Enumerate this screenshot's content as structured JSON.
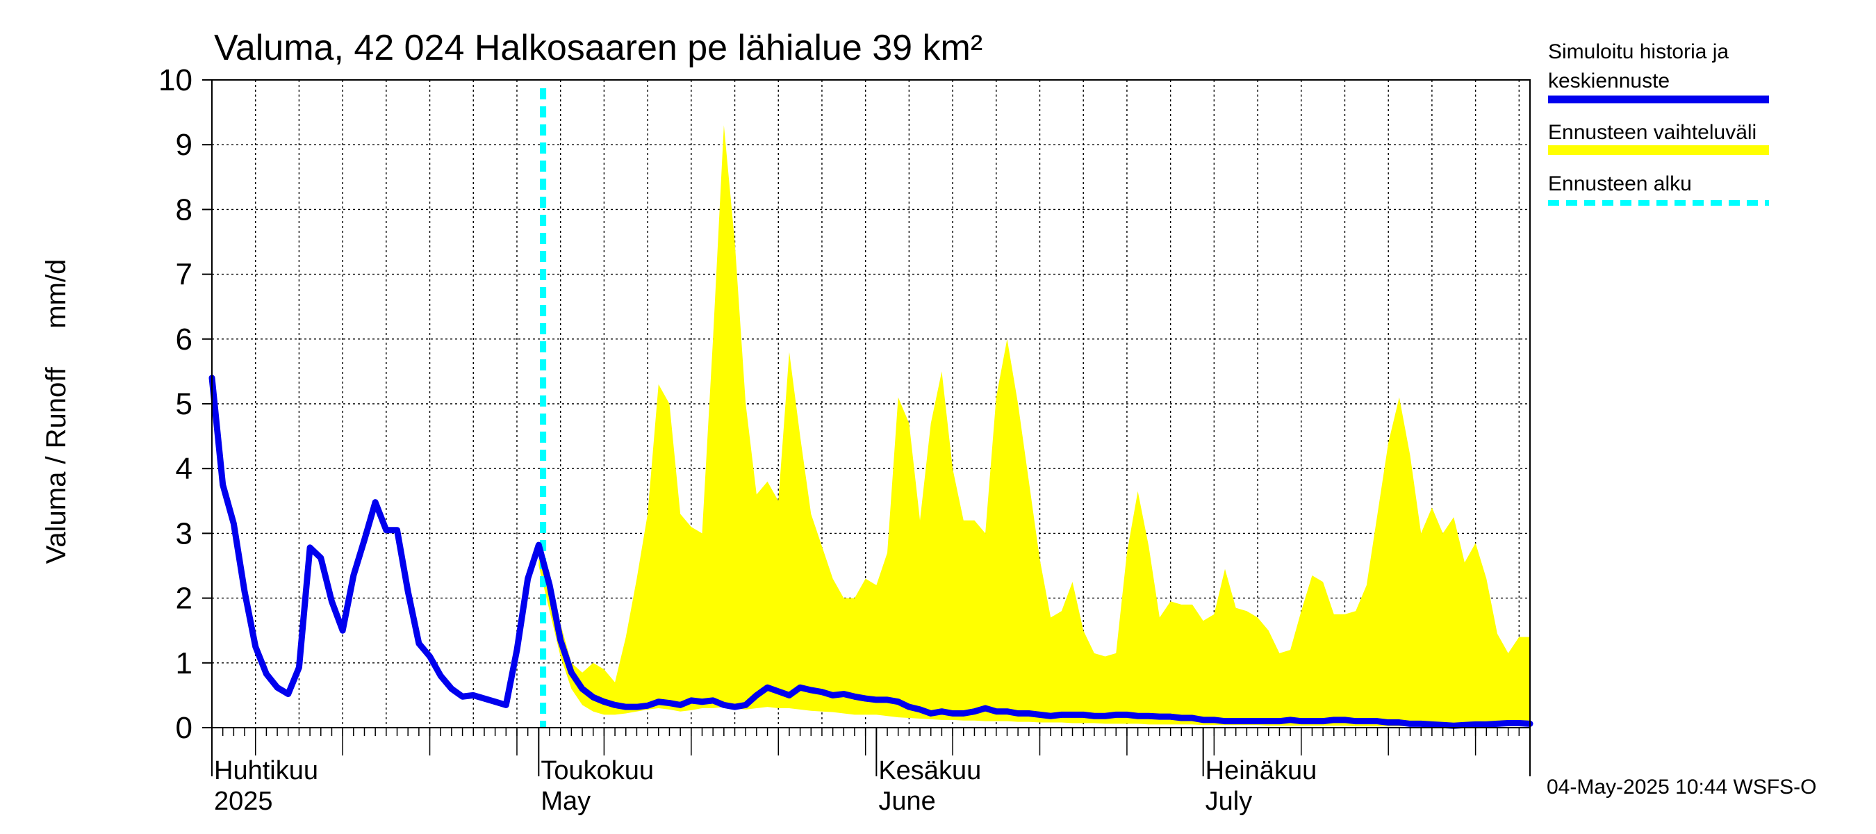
{
  "chart_data": {
    "type": "area",
    "title": "Valuma, 42 024 Halkosaaren pe lähialue 39 km²",
    "ylabel": "Valuma / Runoff     mm/d",
    "ylim": [
      0,
      10
    ],
    "yticks": [
      "0",
      "1",
      "2",
      "3",
      "4",
      "5",
      "6",
      "7",
      "8",
      "9",
      "10"
    ],
    "xlim_days": [
      0,
      121
    ],
    "month_labels": [
      {
        "day": 0,
        "line1": "Huhtikuu",
        "line2": "2025"
      },
      {
        "day": 30,
        "line1": "Toukokuu",
        "line2": "May"
      },
      {
        "day": 61,
        "line1": "Kesäkuu",
        "line2": "June"
      },
      {
        "day": 91,
        "line1": "Heinäkuu",
        "line2": "July"
      }
    ],
    "grid": true,
    "forecast_start_day": 30.4,
    "colors": {
      "history": "#0000ee",
      "range": "#ffff00",
      "forecast_start": "#00ffff",
      "grid": "#000000"
    },
    "legend": {
      "placement": "right",
      "history_line1": "Simuloitu historia ja",
      "history_line2": "keskiennuste",
      "range": "Ennusteen vaihteluväli",
      "forecast_start": "Ennusteen alku"
    },
    "series": [
      {
        "name": "Simuloitu historia ja keskiennuste",
        "x": [
          0,
          1,
          2,
          3,
          4,
          5,
          6,
          7,
          8,
          9,
          10,
          11,
          12,
          13,
          14,
          15,
          16,
          17,
          18,
          19,
          20,
          21,
          22,
          23,
          24,
          25,
          26,
          27,
          28,
          29,
          30,
          31,
          32,
          33,
          34,
          35,
          36,
          37,
          38,
          39,
          40,
          41,
          42,
          43,
          44,
          45,
          46,
          47,
          48,
          49,
          50,
          51,
          52,
          53,
          54,
          55,
          56,
          57,
          58,
          59,
          60,
          61,
          62,
          63,
          64,
          65,
          66,
          67,
          68,
          69,
          70,
          71,
          72,
          73,
          74,
          75,
          76,
          77,
          78,
          79,
          80,
          81,
          82,
          83,
          84,
          85,
          86,
          87,
          88,
          89,
          90,
          91,
          92,
          93,
          94,
          95,
          96,
          97,
          98,
          99,
          100,
          101,
          102,
          103,
          104,
          105,
          106,
          107,
          108,
          109,
          110,
          111,
          112,
          113,
          114,
          115,
          116,
          117,
          118,
          119,
          120,
          121
        ],
        "y": [
          5.4,
          3.75,
          3.15,
          2.1,
          1.25,
          0.83,
          0.62,
          0.52,
          0.93,
          2.78,
          2.62,
          1.95,
          1.5,
          2.35,
          2.9,
          3.48,
          3.05,
          3.05,
          2.1,
          1.3,
          1.1,
          0.8,
          0.6,
          0.48,
          0.5,
          0.45,
          0.4,
          0.35,
          1.2,
          2.3,
          2.82,
          2.2,
          1.35,
          0.85,
          0.6,
          0.47,
          0.4,
          0.35,
          0.32,
          0.32,
          0.34,
          0.4,
          0.38,
          0.35,
          0.42,
          0.4,
          0.42,
          0.35,
          0.32,
          0.35,
          0.5,
          0.62,
          0.56,
          0.5,
          0.62,
          0.58,
          0.55,
          0.5,
          0.52,
          0.48,
          0.45,
          0.43,
          0.43,
          0.4,
          0.32,
          0.28,
          0.22,
          0.25,
          0.22,
          0.22,
          0.25,
          0.3,
          0.25,
          0.25,
          0.22,
          0.22,
          0.2,
          0.18,
          0.2,
          0.2,
          0.2,
          0.18,
          0.18,
          0.2,
          0.2,
          0.18,
          0.18,
          0.17,
          0.17,
          0.15,
          0.15,
          0.12,
          0.12,
          0.1,
          0.1,
          0.1,
          0.1,
          0.1,
          0.1,
          0.12,
          0.1,
          0.1,
          0.1,
          0.12,
          0.12,
          0.1,
          0.1,
          0.1,
          0.08,
          0.08,
          0.06,
          0.06,
          0.05,
          0.04,
          0.03,
          0.04,
          0.05,
          0.05,
          0.06,
          0.07,
          0.07,
          0.06
        ]
      },
      {
        "name": "Ennusteen vaihteluväli",
        "x": [
          30,
          31,
          32,
          33,
          34,
          35,
          36,
          37,
          38,
          39,
          40,
          41,
          42,
          43,
          44,
          45,
          46,
          47,
          48,
          49,
          50,
          51,
          52,
          53,
          54,
          55,
          56,
          57,
          58,
          59,
          60,
          61,
          62,
          63,
          64,
          65,
          66,
          67,
          68,
          69,
          70,
          71,
          72,
          73,
          74,
          75,
          76,
          77,
          78,
          79,
          80,
          81,
          82,
          83,
          84,
          85,
          86,
          87,
          88,
          89,
          90,
          91,
          92,
          93,
          94,
          95,
          96,
          97,
          98,
          99,
          100,
          101,
          102,
          103,
          104,
          105,
          106,
          107,
          108,
          109,
          110,
          111,
          112,
          113,
          114,
          115,
          116,
          117,
          118,
          119,
          120,
          121
        ],
        "upper": [
          2.6,
          2.4,
          1.6,
          1.0,
          0.85,
          1.0,
          0.9,
          0.7,
          1.4,
          2.3,
          3.3,
          5.3,
          5.0,
          3.3,
          3.1,
          3.0,
          6.0,
          9.3,
          7.5,
          5.0,
          3.6,
          3.8,
          3.5,
          5.8,
          4.5,
          3.3,
          2.8,
          2.3,
          2.0,
          2.0,
          2.3,
          2.2,
          2.7,
          5.1,
          4.7,
          3.2,
          4.7,
          5.5,
          4.0,
          3.2,
          3.2,
          3.0,
          5.1,
          6.0,
          5.0,
          3.8,
          2.6,
          1.7,
          1.8,
          2.25,
          1.5,
          1.15,
          1.1,
          1.15,
          2.7,
          3.65,
          2.8,
          1.7,
          1.95,
          1.9,
          1.9,
          1.65,
          1.75,
          2.45,
          1.85,
          1.8,
          1.7,
          1.5,
          1.15,
          1.2,
          1.8,
          2.35,
          2.25,
          1.75,
          1.75,
          1.8,
          2.2,
          3.3,
          4.4,
          5.1,
          4.2,
          3.0,
          3.4,
          3.0,
          3.25,
          2.55,
          2.85,
          2.3,
          1.45,
          1.15,
          1.4,
          1.4
        ],
        "lower": [
          2.5,
          1.8,
          1.1,
          0.6,
          0.35,
          0.25,
          0.2,
          0.2,
          0.22,
          0.25,
          0.28,
          0.3,
          0.28,
          0.25,
          0.27,
          0.3,
          0.3,
          0.32,
          0.3,
          0.28,
          0.3,
          0.32,
          0.3,
          0.3,
          0.28,
          0.26,
          0.25,
          0.24,
          0.22,
          0.2,
          0.2,
          0.2,
          0.18,
          0.16,
          0.15,
          0.14,
          0.13,
          0.12,
          0.12,
          0.11,
          0.11,
          0.1,
          0.1,
          0.1,
          0.09,
          0.09,
          0.08,
          0.08,
          0.08,
          0.07,
          0.07,
          0.07,
          0.06,
          0.06,
          0.06,
          0.06,
          0.05,
          0.05,
          0.05,
          0.05,
          0.05,
          0.04,
          0.04,
          0.04,
          0.04,
          0.04,
          0.04,
          0.03,
          0.03,
          0.03,
          0.03,
          0.03,
          0.03,
          0.03,
          0.03,
          0.02,
          0.02,
          0.02,
          0.02,
          0.02,
          0.02,
          0.02,
          0.02,
          0.02,
          0.02,
          0.02,
          0.02,
          0.02,
          0.02,
          0.02,
          0.02,
          0.02
        ]
      }
    ]
  },
  "footer": "04-May-2025 10:44 WSFS-O"
}
